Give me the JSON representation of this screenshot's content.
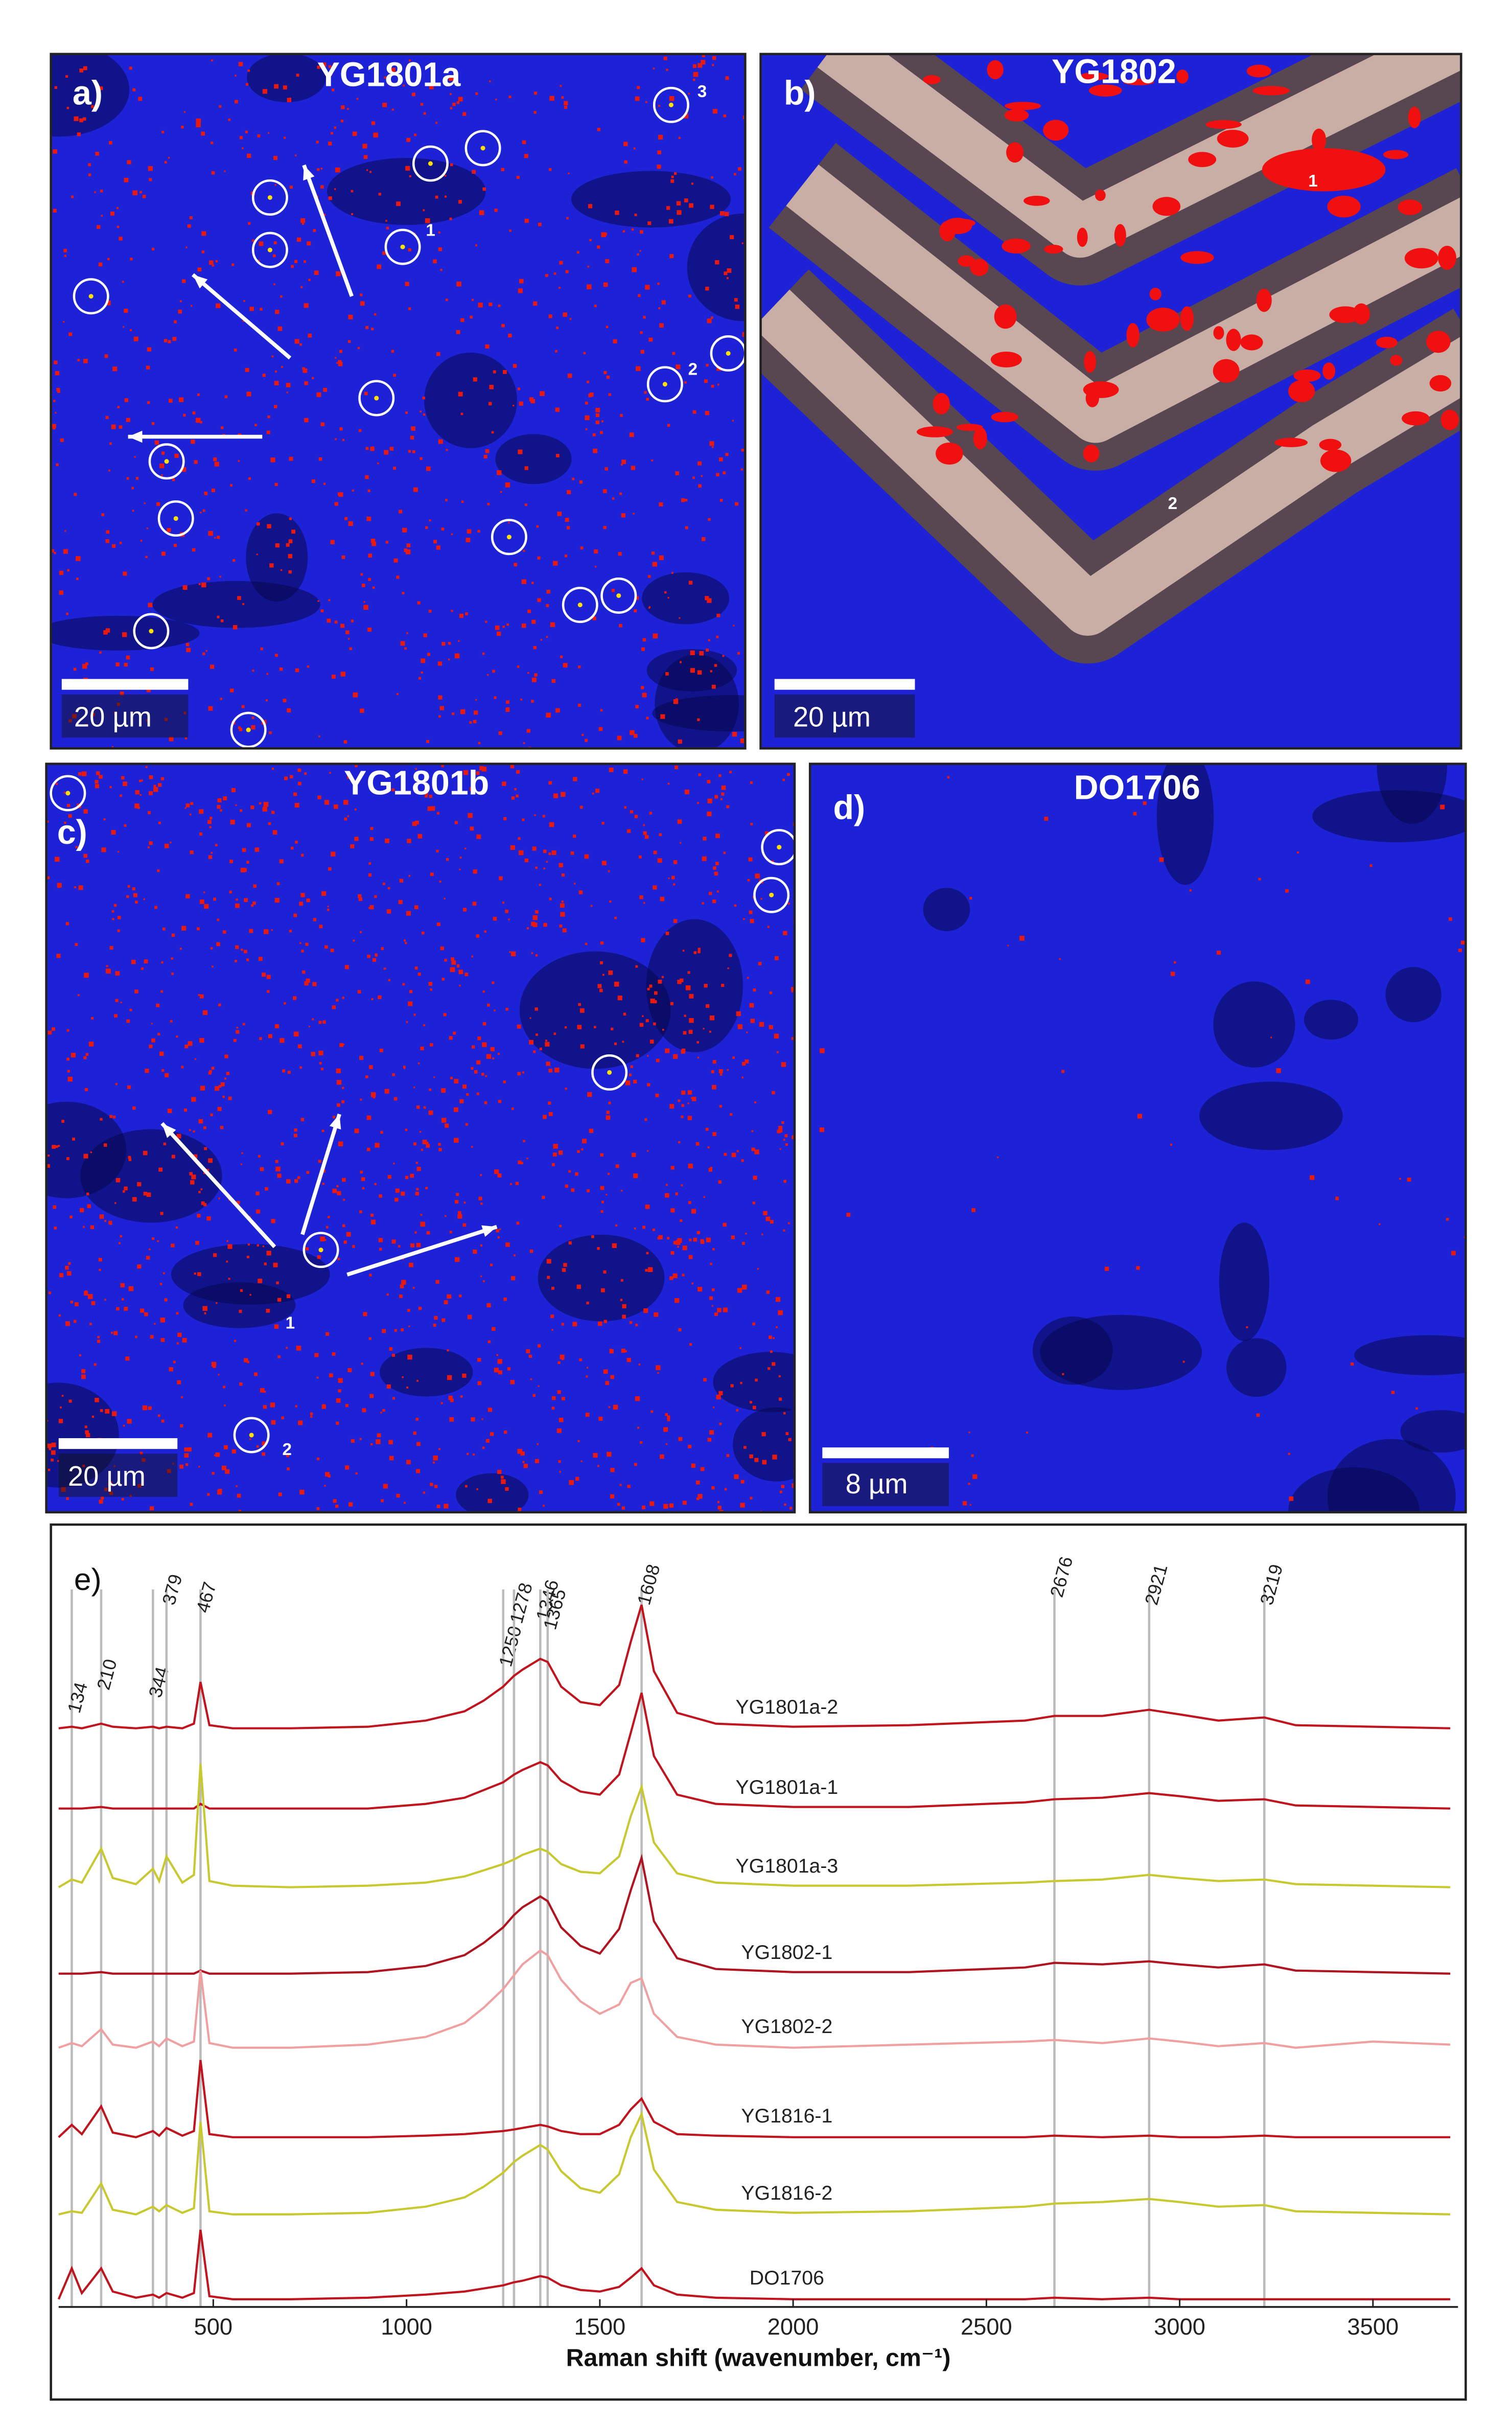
{
  "panels": [
    {
      "letter": "a)",
      "title": "YG1801a",
      "scale_bar": "20 µm",
      "markers": [
        "1",
        "2",
        "3"
      ]
    },
    {
      "letter": "b)",
      "title": "YG1802",
      "scale_bar": "20 µm",
      "markers": [
        "1",
        "2"
      ]
    },
    {
      "letter": "c)",
      "title": "YG1801b",
      "scale_bar": "20 µm",
      "markers": [
        "1",
        "2"
      ]
    },
    {
      "letter": "d)",
      "title": "DO1706",
      "scale_bar": "8 µm"
    }
  ],
  "chart_data": {
    "type": "line",
    "panel_label": "e)",
    "x_label": "Raman shift (wavenumber, cm⁻¹)",
    "x": [
      100,
      134,
      160,
      210,
      240,
      300,
      344,
      360,
      379,
      420,
      450,
      467,
      490,
      550,
      700,
      900,
      1050,
      1150,
      1200,
      1250,
      1278,
      1300,
      1346,
      1365,
      1400,
      1450,
      1500,
      1550,
      1580,
      1608,
      1640,
      1700,
      1800,
      2000,
      2300,
      2600,
      2676,
      2800,
      2921,
      3000,
      3100,
      3219,
      3300,
      3500,
      3700
    ],
    "xlim": [
      100,
      3720
    ],
    "xticks": [
      500,
      1000,
      1500,
      2000,
      2500,
      3000,
      3500
    ],
    "ylim": [
      0,
      480
    ],
    "reference_lines": [
      134,
      210,
      344,
      379,
      467,
      1250,
      1278,
      1346,
      1365,
      1608,
      2676,
      2921,
      3219
    ],
    "series": [
      {
        "name": "YG1801a-2",
        "color": "#c0141e",
        "values": [
          375,
          376,
          375,
          378,
          376,
          375,
          376,
          375,
          376,
          375,
          378,
          405,
          377,
          375,
          375,
          376,
          380,
          386,
          393,
          402,
          409,
          413,
          420,
          418,
          402,
          392,
          390,
          403,
          431,
          455,
          412,
          385,
          378,
          376,
          377,
          380,
          383,
          383,
          387,
          384,
          380,
          382,
          377,
          376,
          375
        ]
      },
      {
        "name": "YG1801a-1",
        "color": "#c0141e",
        "values": [
          323,
          323,
          323,
          324,
          323,
          323,
          323,
          323,
          323,
          323,
          323,
          326,
          323,
          323,
          323,
          323,
          326,
          330,
          335,
          340,
          345,
          348,
          353,
          351,
          341,
          334,
          332,
          345,
          372,
          398,
          357,
          332,
          326,
          324,
          324,
          327,
          329,
          330,
          333,
          331,
          328,
          329,
          325,
          324,
          323
        ]
      },
      {
        "name": "YG1801a-3",
        "color": "#c8c830",
        "values": [
          272,
          277,
          275,
          297,
          278,
          274,
          284,
          276,
          292,
          275,
          280,
          352,
          276,
          273,
          272,
          273,
          275,
          279,
          283,
          287,
          290,
          293,
          297,
          295,
          287,
          282,
          281,
          292,
          318,
          337,
          301,
          281,
          275,
          273,
          273,
          275,
          276,
          277,
          280,
          278,
          276,
          277,
          274,
          273,
          272
        ]
      },
      {
        "name": "YG1802-1",
        "color": "#b01420",
        "values": [
          216,
          216,
          216,
          217,
          216,
          216,
          216,
          216,
          216,
          216,
          216,
          218,
          216,
          216,
          216,
          217,
          221,
          228,
          236,
          246,
          254,
          259,
          266,
          263,
          246,
          234,
          229,
          245,
          270,
          291,
          250,
          226,
          219,
          217,
          217,
          220,
          223,
          222,
          224,
          222,
          220,
          222,
          218,
          217,
          216
        ]
      },
      {
        "name": "YG1802-2",
        "color": "#f0a0a0",
        "values": [
          168,
          171,
          169,
          180,
          170,
          168,
          172,
          169,
          174,
          169,
          172,
          218,
          171,
          168,
          168,
          170,
          175,
          184,
          194,
          206,
          215,
          222,
          231,
          228,
          212,
          198,
          190,
          196,
          210,
          213,
          190,
          175,
          170,
          168,
          170,
          172,
          173,
          171,
          174,
          172,
          169,
          171,
          168,
          172,
          170
        ]
      },
      {
        "name": "YG1816-1",
        "color": "#c0141e",
        "values": [
          110,
          118,
          112,
          130,
          113,
          110,
          114,
          111,
          116,
          111,
          114,
          160,
          112,
          110,
          110,
          110,
          111,
          112,
          113,
          114,
          115,
          116,
          118,
          117,
          114,
          112,
          112,
          118,
          128,
          135,
          120,
          112,
          111,
          110,
          110,
          110,
          111,
          110,
          111,
          110,
          110,
          111,
          110,
          110,
          110
        ]
      },
      {
        "name": "YG1816-2",
        "color": "#c8c830",
        "values": [
          60,
          62,
          61,
          80,
          63,
          60,
          65,
          62,
          66,
          61,
          64,
          120,
          62,
          60,
          60,
          61,
          65,
          71,
          78,
          87,
          94,
          98,
          105,
          102,
          88,
          77,
          74,
          86,
          110,
          125,
          89,
          68,
          63,
          61,
          62,
          65,
          67,
          68,
          70,
          68,
          65,
          66,
          62,
          61,
          60
        ]
      },
      {
        "name": "DO1706",
        "color": "#c0141e",
        "values": [
          5,
          25,
          9,
          25,
          10,
          6,
          8,
          6,
          9,
          6,
          9,
          50,
          7,
          5,
          5,
          6,
          8,
          10,
          12,
          14,
          16,
          17,
          20,
          19,
          14,
          11,
          10,
          13,
          19,
          25,
          14,
          8,
          6,
          5,
          5,
          5,
          6,
          5,
          6,
          5,
          5,
          5,
          5,
          5,
          5
        ]
      }
    ]
  }
}
